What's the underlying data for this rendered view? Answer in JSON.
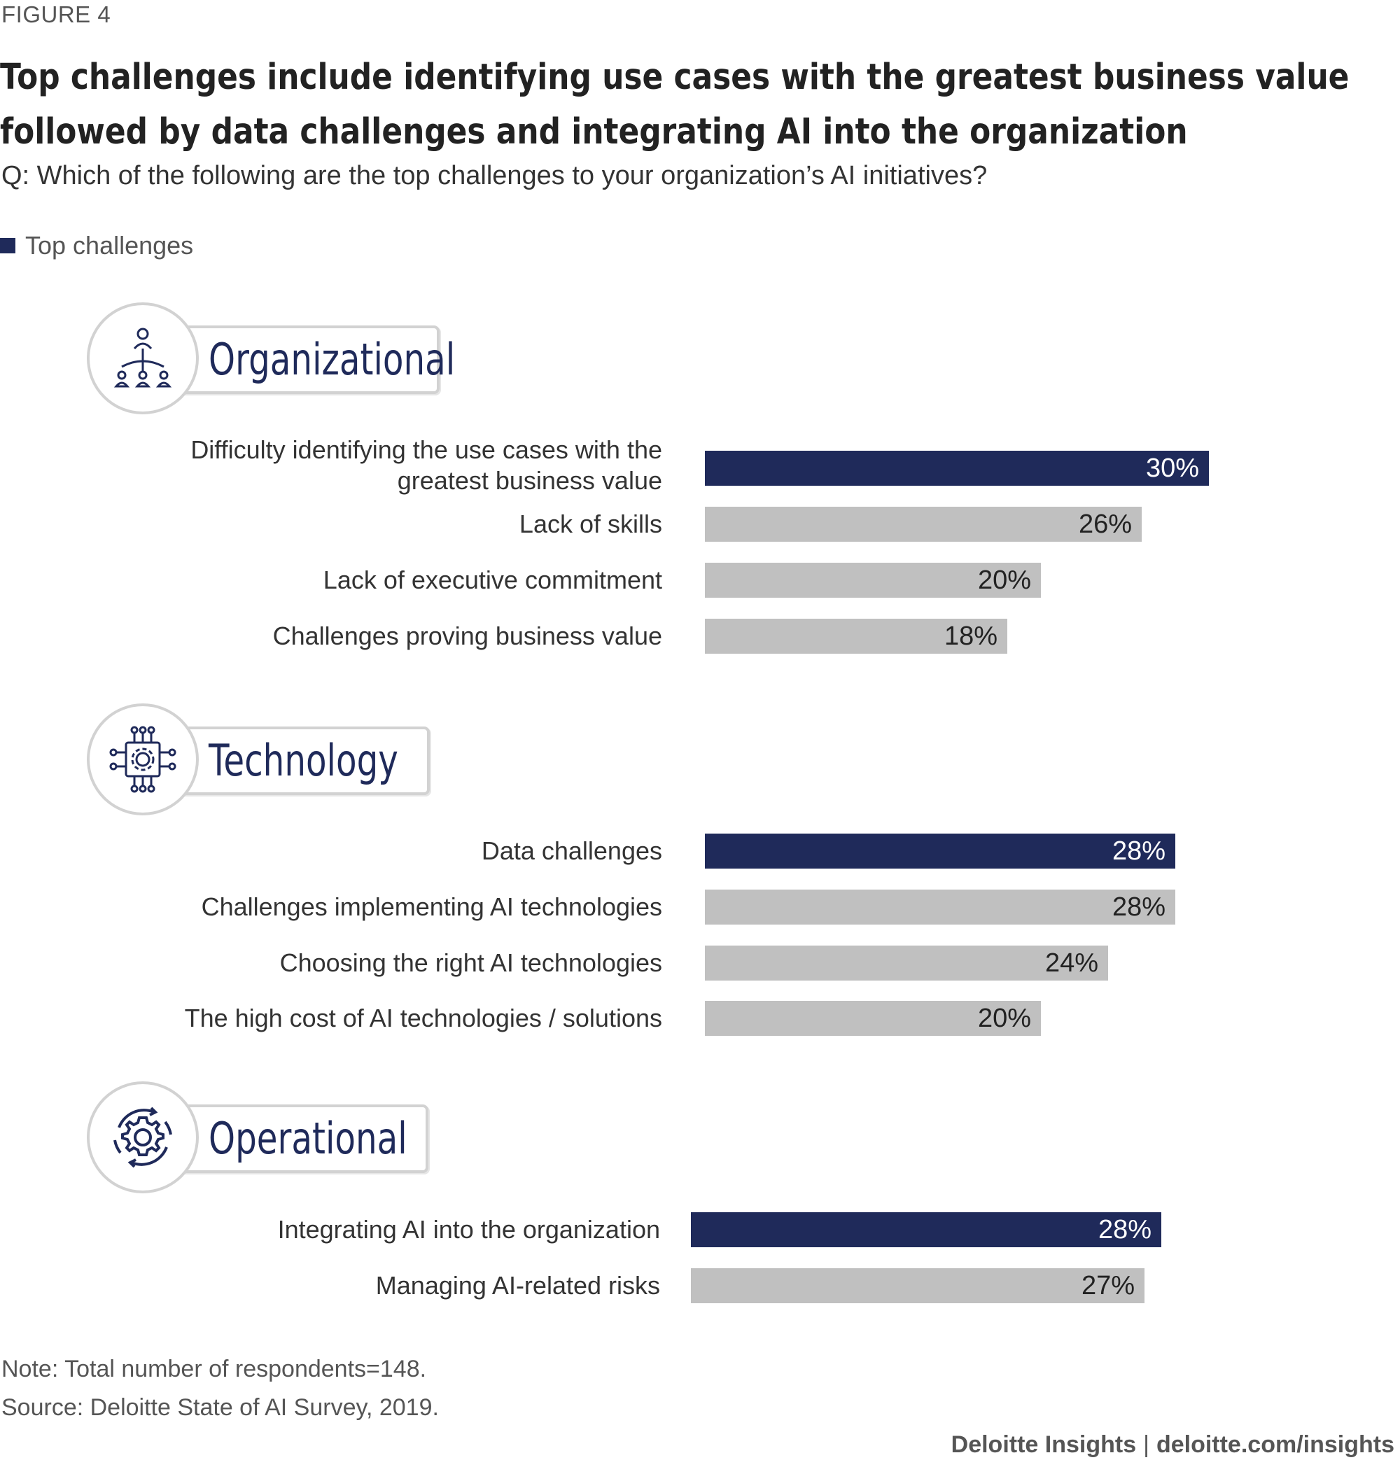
{
  "figure_label": "FIGURE 4",
  "title_lines": [
    "Top challenges include identifying use cases with the greatest business value",
    "followed by data challenges and integrating AI into the organization"
  ],
  "question": "Q: Which of the following are the top challenges to your organization’s AI initiatives?",
  "legend": {
    "label": "Top challenges",
    "color": "#1f2a5a"
  },
  "colors": {
    "highlight": "#1f2a5a",
    "default": "#c0c0c0",
    "icon": "#1f2a5a"
  },
  "chart_data": {
    "type": "bar",
    "orientation": "horizontal",
    "unit": "%",
    "groups": [
      {
        "name": "Organizational",
        "icon": "org-chart-icon",
        "items": [
          {
            "label": "Difficulty identifying the use cases with the greatest business value",
            "value": 30,
            "top": true
          },
          {
            "label": "Lack of skills",
            "value": 26,
            "top": false
          },
          {
            "label": "Lack of executive commitment",
            "value": 20,
            "top": false
          },
          {
            "label": "Challenges proving business value",
            "value": 18,
            "top": false
          }
        ]
      },
      {
        "name": "Technology",
        "icon": "chip-gear-icon",
        "items": [
          {
            "label": "Data challenges",
            "value": 28,
            "top": true
          },
          {
            "label": "Challenges implementing AI technologies",
            "value": 28,
            "top": false
          },
          {
            "label": "Choosing the right AI technologies",
            "value": 24,
            "top": false
          },
          {
            "label": "The high cost of AI technologies / solutions",
            "value": 20,
            "top": false
          }
        ]
      },
      {
        "name": "Operational",
        "icon": "gear-cycle-icon",
        "items": [
          {
            "label": "Integrating AI into the organization",
            "value": 28,
            "top": true
          },
          {
            "label": "Managing AI-related risks",
            "value": 27,
            "top": false
          }
        ]
      }
    ]
  },
  "note": "Note: Total number of respondents=148.",
  "source": "Source: Deloitte State of AI Survey, 2019.",
  "footer": {
    "brand": "Deloitte Insights",
    "separator": "|",
    "url": "deloitte.com/insights"
  }
}
